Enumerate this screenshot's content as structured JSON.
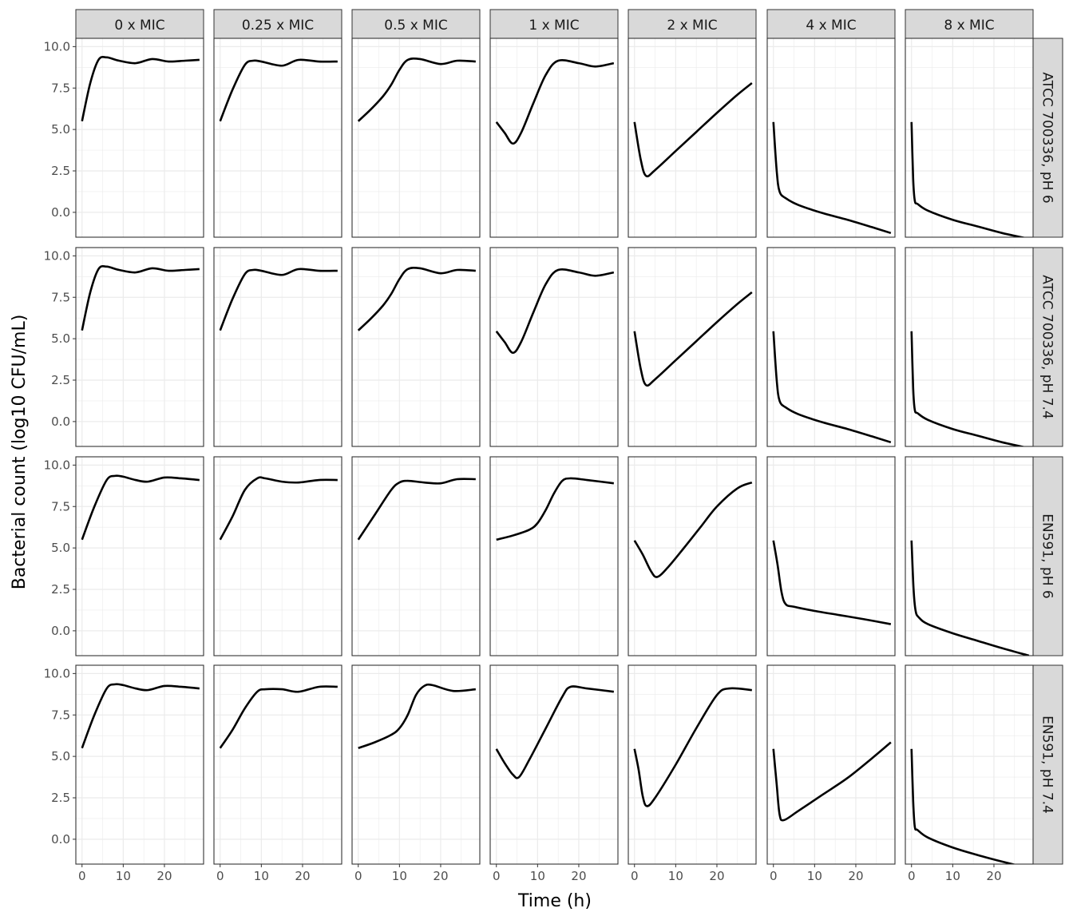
{
  "chart_data": {
    "type": "line",
    "layout": "facet-grid",
    "xlabel": "Time (h)",
    "ylabel": "Bacterial count (log10 CFU/mL)",
    "xlim": [
      -1.5,
      29.5
    ],
    "ylim": [
      -1.5,
      10.5
    ],
    "x_ticks": [
      0,
      10,
      20
    ],
    "y_ticks": [
      0.0,
      2.5,
      5.0,
      7.5,
      10.0
    ],
    "y_tick_labels": [
      "0.0",
      "2.5",
      "5.0",
      "7.5",
      "10.0"
    ],
    "x_tick_labels": [
      "0",
      "10",
      "20"
    ],
    "grid": true,
    "columns": [
      "0 x MIC",
      "0.25 x MIC",
      "0.5 x MIC",
      "1 x MIC",
      "2 x MIC",
      "4 x MIC",
      "8 x MIC"
    ],
    "rows": [
      "ATCC 700336, pH 6",
      "ATCC 700336, pH 7.4",
      "EN591, pH 6",
      "EN591, pH 7.4"
    ],
    "colors": {
      "line": "#000000",
      "strip_fill": "#d9d9d9",
      "grid": "#ebebeb",
      "panel_border": "#333333"
    },
    "panels": [
      [
        {
          "x": [
            0,
            2,
            4,
            6,
            9,
            13,
            17,
            21,
            25,
            28.5
          ],
          "y": [
            5.5,
            7.8,
            9.2,
            9.35,
            9.15,
            9.0,
            9.25,
            9.1,
            9.15,
            9.2
          ]
        },
        {
          "x": [
            0,
            3,
            6,
            8,
            10,
            15,
            19,
            24,
            28.5
          ],
          "y": [
            5.5,
            7.4,
            8.9,
            9.15,
            9.1,
            8.85,
            9.2,
            9.1,
            9.1
          ]
        },
        {
          "x": [
            0,
            3,
            6,
            8,
            10,
            12,
            15,
            20,
            24,
            28.5
          ],
          "y": [
            5.5,
            6.2,
            7.0,
            7.7,
            8.6,
            9.2,
            9.25,
            8.95,
            9.15,
            9.1
          ]
        },
        {
          "x": [
            0,
            2,
            4,
            6,
            9,
            12,
            15,
            20,
            24,
            28.5
          ],
          "y": [
            5.45,
            4.8,
            4.15,
            4.8,
            6.6,
            8.3,
            9.15,
            9.0,
            8.8,
            9.0
          ]
        },
        {
          "x": [
            0,
            1.5,
            2.8,
            5,
            10,
            15,
            20,
            25,
            28.5
          ],
          "y": [
            5.45,
            3.2,
            2.2,
            2.55,
            3.7,
            4.85,
            6.0,
            7.1,
            7.8
          ]
        },
        {
          "x": [
            0,
            0.8,
            1.5,
            3,
            6,
            12,
            18,
            24,
            28.5
          ],
          "y": [
            5.45,
            2.5,
            1.25,
            0.85,
            0.45,
            -0.05,
            -0.45,
            -0.9,
            -1.25
          ]
        },
        {
          "x": [
            0,
            0.4,
            0.8,
            1.5,
            4,
            10,
            16,
            22,
            28.5
          ],
          "y": [
            5.45,
            2.0,
            0.7,
            0.5,
            0.1,
            -0.45,
            -0.85,
            -1.25,
            -1.6
          ]
        }
      ],
      [
        {
          "x": [
            0,
            2,
            4,
            6,
            9,
            13,
            17,
            21,
            25,
            28.5
          ],
          "y": [
            5.5,
            7.8,
            9.2,
            9.35,
            9.15,
            9.0,
            9.25,
            9.1,
            9.15,
            9.2
          ]
        },
        {
          "x": [
            0,
            3,
            6,
            8,
            10,
            15,
            19,
            24,
            28.5
          ],
          "y": [
            5.5,
            7.4,
            8.9,
            9.15,
            9.1,
            8.85,
            9.2,
            9.1,
            9.1
          ]
        },
        {
          "x": [
            0,
            3,
            6,
            8,
            10,
            12,
            15,
            20,
            24,
            28.5
          ],
          "y": [
            5.5,
            6.2,
            7.0,
            7.7,
            8.6,
            9.2,
            9.25,
            8.95,
            9.15,
            9.1
          ]
        },
        {
          "x": [
            0,
            2,
            4,
            6,
            9,
            12,
            15,
            20,
            24,
            28.5
          ],
          "y": [
            5.45,
            4.8,
            4.15,
            4.8,
            6.6,
            8.3,
            9.15,
            9.0,
            8.8,
            9.0
          ]
        },
        {
          "x": [
            0,
            1.5,
            2.8,
            5,
            10,
            15,
            20,
            25,
            28.5
          ],
          "y": [
            5.45,
            3.2,
            2.2,
            2.55,
            3.7,
            4.85,
            6.0,
            7.1,
            7.8
          ]
        },
        {
          "x": [
            0,
            0.8,
            1.5,
            3,
            6,
            12,
            18,
            24,
            28.5
          ],
          "y": [
            5.45,
            2.5,
            1.25,
            0.85,
            0.45,
            -0.05,
            -0.45,
            -0.9,
            -1.25
          ]
        },
        {
          "x": [
            0,
            0.4,
            0.8,
            1.5,
            4,
            10,
            16,
            22,
            28.5
          ],
          "y": [
            5.45,
            2.0,
            0.7,
            0.5,
            0.1,
            -0.45,
            -0.85,
            -1.25,
            -1.6
          ]
        }
      ],
      [
        {
          "x": [
            0,
            3,
            6,
            8,
            10,
            13,
            16,
            20,
            24,
            28.5
          ],
          "y": [
            5.5,
            7.5,
            9.1,
            9.35,
            9.3,
            9.1,
            9.0,
            9.25,
            9.2,
            9.1
          ]
        },
        {
          "x": [
            0,
            3,
            6,
            9,
            11,
            15,
            19,
            24,
            28.5
          ],
          "y": [
            5.5,
            6.9,
            8.5,
            9.2,
            9.2,
            9.0,
            8.95,
            9.1,
            9.1
          ]
        },
        {
          "x": [
            0,
            4,
            8,
            10,
            12,
            16,
            20,
            24,
            28.5
          ],
          "y": [
            5.5,
            7.0,
            8.5,
            8.95,
            9.05,
            8.95,
            8.9,
            9.15,
            9.15
          ]
        },
        {
          "x": [
            0,
            4,
            8,
            10,
            12,
            14,
            16,
            18,
            22,
            28.5
          ],
          "y": [
            5.5,
            5.75,
            6.1,
            6.5,
            7.3,
            8.3,
            9.05,
            9.2,
            9.1,
            8.9
          ]
        },
        {
          "x": [
            0,
            2,
            4,
            5.5,
            8,
            12,
            16,
            20,
            25,
            28.5
          ],
          "y": [
            5.45,
            4.6,
            3.6,
            3.25,
            3.8,
            5.0,
            6.25,
            7.5,
            8.6,
            8.95
          ]
        },
        {
          "x": [
            0,
            1,
            2,
            3,
            5,
            10,
            16,
            22,
            28.5
          ],
          "y": [
            5.45,
            4.0,
            2.3,
            1.6,
            1.45,
            1.2,
            0.95,
            0.7,
            0.4
          ]
        },
        {
          "x": [
            0,
            0.5,
            1,
            1.8,
            4,
            10,
            16,
            22,
            28.5
          ],
          "y": [
            5.45,
            2.5,
            1.2,
            0.8,
            0.4,
            -0.15,
            -0.6,
            -1.05,
            -1.5
          ]
        }
      ],
      [
        {
          "x": [
            0,
            3,
            6,
            8,
            10,
            13,
            16,
            20,
            24,
            28.5
          ],
          "y": [
            5.5,
            7.5,
            9.1,
            9.35,
            9.3,
            9.1,
            9.0,
            9.25,
            9.2,
            9.1
          ]
        },
        {
          "x": [
            0,
            3,
            6,
            9,
            11,
            15,
            19,
            24,
            28.5
          ],
          "y": [
            5.5,
            6.6,
            7.9,
            8.9,
            9.05,
            9.05,
            8.9,
            9.2,
            9.2
          ]
        },
        {
          "x": [
            0,
            4,
            8,
            10,
            12,
            14,
            16,
            18,
            23,
            28.5
          ],
          "y": [
            5.5,
            5.85,
            6.3,
            6.7,
            7.5,
            8.7,
            9.25,
            9.3,
            8.95,
            9.05
          ]
        },
        {
          "x": [
            0,
            2,
            4,
            5.5,
            8,
            12,
            16,
            18,
            22,
            28.5
          ],
          "y": [
            5.45,
            4.6,
            3.9,
            3.75,
            4.8,
            6.7,
            8.6,
            9.2,
            9.1,
            8.9
          ]
        },
        {
          "x": [
            0,
            1,
            2,
            3,
            5,
            10,
            15,
            20,
            23,
            28.5
          ],
          "y": [
            5.45,
            4.2,
            2.6,
            2.0,
            2.5,
            4.5,
            6.7,
            8.7,
            9.1,
            9.0
          ]
        },
        {
          "x": [
            0,
            0.8,
            1.5,
            2.5,
            6,
            12,
            18,
            24,
            28.5
          ],
          "y": [
            5.45,
            3.3,
            1.5,
            1.15,
            1.7,
            2.7,
            3.7,
            4.9,
            5.85
          ]
        },
        {
          "x": [
            0,
            0.4,
            0.8,
            1.5,
            4,
            10,
            16,
            22,
            28.5
          ],
          "y": [
            5.45,
            2.3,
            0.75,
            0.55,
            0.1,
            -0.5,
            -0.95,
            -1.35,
            -1.75
          ]
        }
      ]
    ]
  }
}
